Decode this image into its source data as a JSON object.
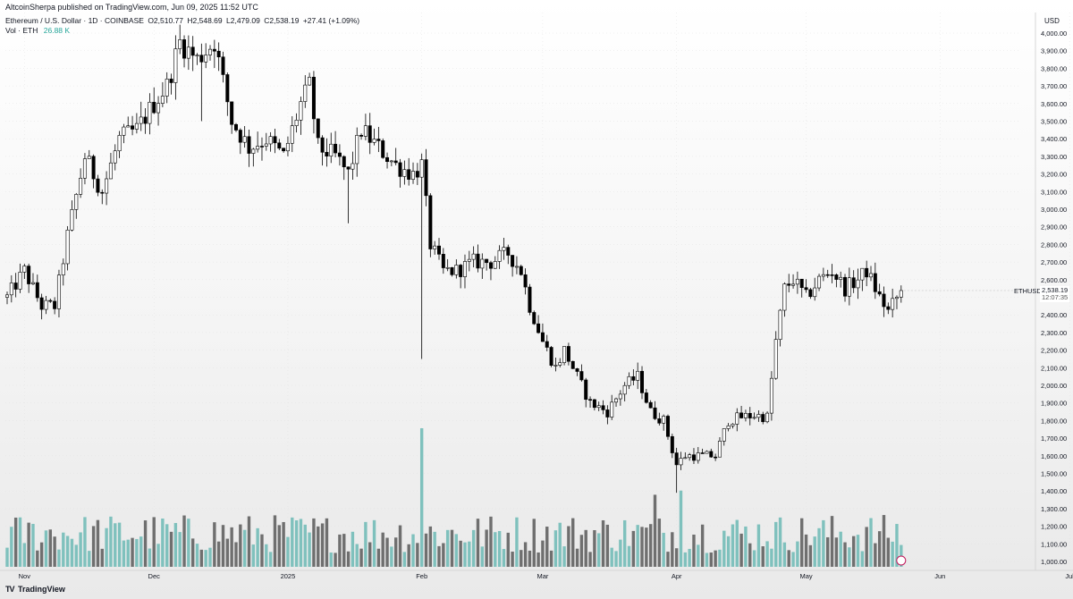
{
  "header": {
    "publisher_line": "AltcoinSherpa published on TradingView.com, Jun 09, 2025 11:52 UTC"
  },
  "legend": {
    "symbol": "Ethereum / U.S. Dollar · 1D · COINBASE",
    "ohlc": {
      "open": "O2,510.77",
      "high": "H2,548.69",
      "low": "L2,479.09",
      "close": "C2,538.19",
      "change": "+27.41 (+1.09%)"
    },
    "volume_label": "Vol · ETH",
    "volume_value": "26.88 K"
  },
  "price_axis": {
    "currency": "USD",
    "ticker_label": "ETHUSD",
    "last_price": "2,538.19",
    "countdown": "12:07:35"
  },
  "footer": {
    "brand": "TradingView",
    "logo": "TV"
  },
  "colors": {
    "up": "#ffffff",
    "down": "#000000",
    "wick": "#000000",
    "vol_up": "#7fc1bd",
    "vol_down": "#6f6f6f",
    "grid": "#e2e2e2"
  },
  "chart_data": {
    "type": "candlestick",
    "title": "Ethereum / U.S. Dollar · 1D · COINBASE",
    "xlabel": "",
    "ylabel": "USD",
    "ylim": [
      1000,
      4000
    ],
    "y_ticks": [
      "1,000.00",
      "1,100.00",
      "1,200.00",
      "1,300.00",
      "1,400.00",
      "1,500.00",
      "1,600.00",
      "1,700.00",
      "1,800.00",
      "1,900.00",
      "2,000.00",
      "2,100.00",
      "2,200.00",
      "2,300.00",
      "2,400.00",
      "2,500.00",
      "2,600.00",
      "2,700.00",
      "2,800.00",
      "2,900.00",
      "3,000.00",
      "3,100.00",
      "3,200.00",
      "3,300.00",
      "3,400.00",
      "3,500.00",
      "3,600.00",
      "3,700.00",
      "3,800.00",
      "3,900.00",
      "4,000.00"
    ],
    "x_ticks": [
      {
        "label": "Nov",
        "day": 4
      },
      {
        "label": "Dec",
        "day": 34
      },
      {
        "label": "2025",
        "day": 65
      },
      {
        "label": "Feb",
        "day": 96
      },
      {
        "label": "Mar",
        "day": 124
      },
      {
        "label": "Apr",
        "day": 155
      },
      {
        "label": "May",
        "day": 185
      },
      {
        "label": "Jun",
        "day": 216
      },
      {
        "label": "Jul",
        "day": 246
      }
    ],
    "date_range": [
      "2024-10-28",
      "2025-06-09"
    ],
    "anchors": [
      [
        0,
        2500
      ],
      [
        4,
        2650
      ],
      [
        8,
        2450
      ],
      [
        11,
        2450
      ],
      [
        14,
        2850
      ],
      [
        18,
        3300
      ],
      [
        22,
        3100
      ],
      [
        26,
        3400
      ],
      [
        30,
        3450
      ],
      [
        34,
        3600
      ],
      [
        37,
        3700
      ],
      [
        40,
        3950
      ],
      [
        44,
        3850
      ],
      [
        48,
        3950
      ],
      [
        52,
        3500
      ],
      [
        56,
        3350
      ],
      [
        60,
        3400
      ],
      [
        64,
        3300
      ],
      [
        68,
        3600
      ],
      [
        70,
        3700
      ],
      [
        72,
        3350
      ],
      [
        76,
        3300
      ],
      [
        79,
        3200
      ],
      [
        82,
        3450
      ],
      [
        86,
        3350
      ],
      [
        90,
        3250
      ],
      [
        94,
        3200
      ],
      [
        96,
        3250
      ],
      [
        98,
        2800
      ],
      [
        101,
        2650
      ],
      [
        104,
        2650
      ],
      [
        108,
        2700
      ],
      [
        112,
        2700
      ],
      [
        116,
        2750
      ],
      [
        119,
        2650
      ],
      [
        121,
        2450
      ],
      [
        124,
        2250
      ],
      [
        127,
        2100
      ],
      [
        129,
        2200
      ],
      [
        132,
        2050
      ],
      [
        135,
        1900
      ],
      [
        139,
        1850
      ],
      [
        143,
        2000
      ],
      [
        146,
        2050
      ],
      [
        149,
        1850
      ],
      [
        152,
        1800
      ],
      [
        155,
        1550
      ],
      [
        157,
        1600
      ],
      [
        160,
        1600
      ],
      [
        164,
        1600
      ],
      [
        167,
        1800
      ],
      [
        170,
        1820
      ],
      [
        173,
        1830
      ],
      [
        176,
        1820
      ],
      [
        178,
        2250
      ],
      [
        180,
        2550
      ],
      [
        182,
        2600
      ],
      [
        185,
        2500
      ],
      [
        188,
        2600
      ],
      [
        191,
        2650
      ],
      [
        194,
        2550
      ],
      [
        197,
        2600
      ],
      [
        199,
        2650
      ],
      [
        202,
        2500
      ],
      [
        204,
        2420
      ],
      [
        207,
        2538.19
      ]
    ],
    "volume": {
      "label": "Vol · ETH",
      "last": "26.88 K",
      "spikes": [
        {
          "day": 96,
          "level": 1.0
        },
        {
          "day": 150,
          "level": 0.52
        },
        {
          "day": 156,
          "level": 0.55
        }
      ]
    }
  }
}
